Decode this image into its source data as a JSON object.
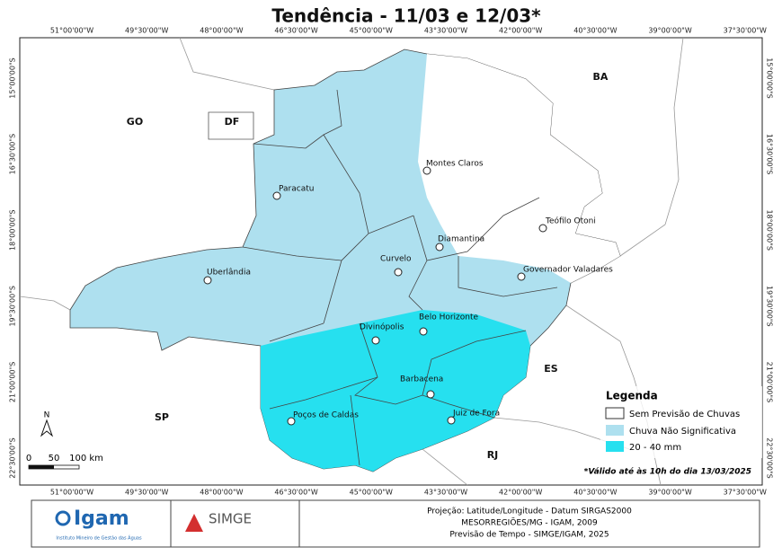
{
  "title": "Tendência - 11/03 e 12/03*",
  "longitudes": [
    "51°00'00\"W",
    "49°30'00\"W",
    "48°00'00\"W",
    "46°30'00\"W",
    "45°00'00\"W",
    "43°30'00\"W",
    "42°00'00\"W",
    "40°30'00\"W",
    "39°00'00\"W",
    "37°30'00\"W"
  ],
  "latitudes": [
    "15°00'00\"S",
    "16°30'00\"S",
    "18°00'00\"S",
    "19°30'00\"S",
    "21°00'00\"S",
    "22°30'00\"S"
  ],
  "states": [
    "GO",
    "DF",
    "BA",
    "ES",
    "SP",
    "RJ"
  ],
  "cities": [
    "Montes Claros",
    "Paracatu",
    "Teófilo Otoni",
    "Diamantina",
    "Curvelo",
    "Governador Valadares",
    "Uberlândia",
    "Belo Horizonte",
    "Divinópolis",
    "Barbacena",
    "Poços de Caldas",
    "Juiz de Fora"
  ],
  "legend": {
    "title": "Legenda",
    "items": [
      "Sem Previsão de Chuvas",
      "Chuva Não Significativa",
      "20 - 40 mm"
    ]
  },
  "note": "*Válido até às 10h do dia 13/03/2025",
  "north": "N",
  "scale": [
    "0",
    "50",
    "100 km"
  ],
  "footer": {
    "logos": [
      {
        "name": "Igam",
        "subtitle": "Instituto Mineiro de Gestão das Águas"
      },
      {
        "name": "SIMGE"
      }
    ],
    "credits": [
      "Projeção: Latitude/Longitude - Datum SIRGAS2000",
      "MESORREGIÕES/MG - IGAM, 2009",
      "Previsão de Tempo - SIMGE/IGAM, 2025"
    ]
  }
}
